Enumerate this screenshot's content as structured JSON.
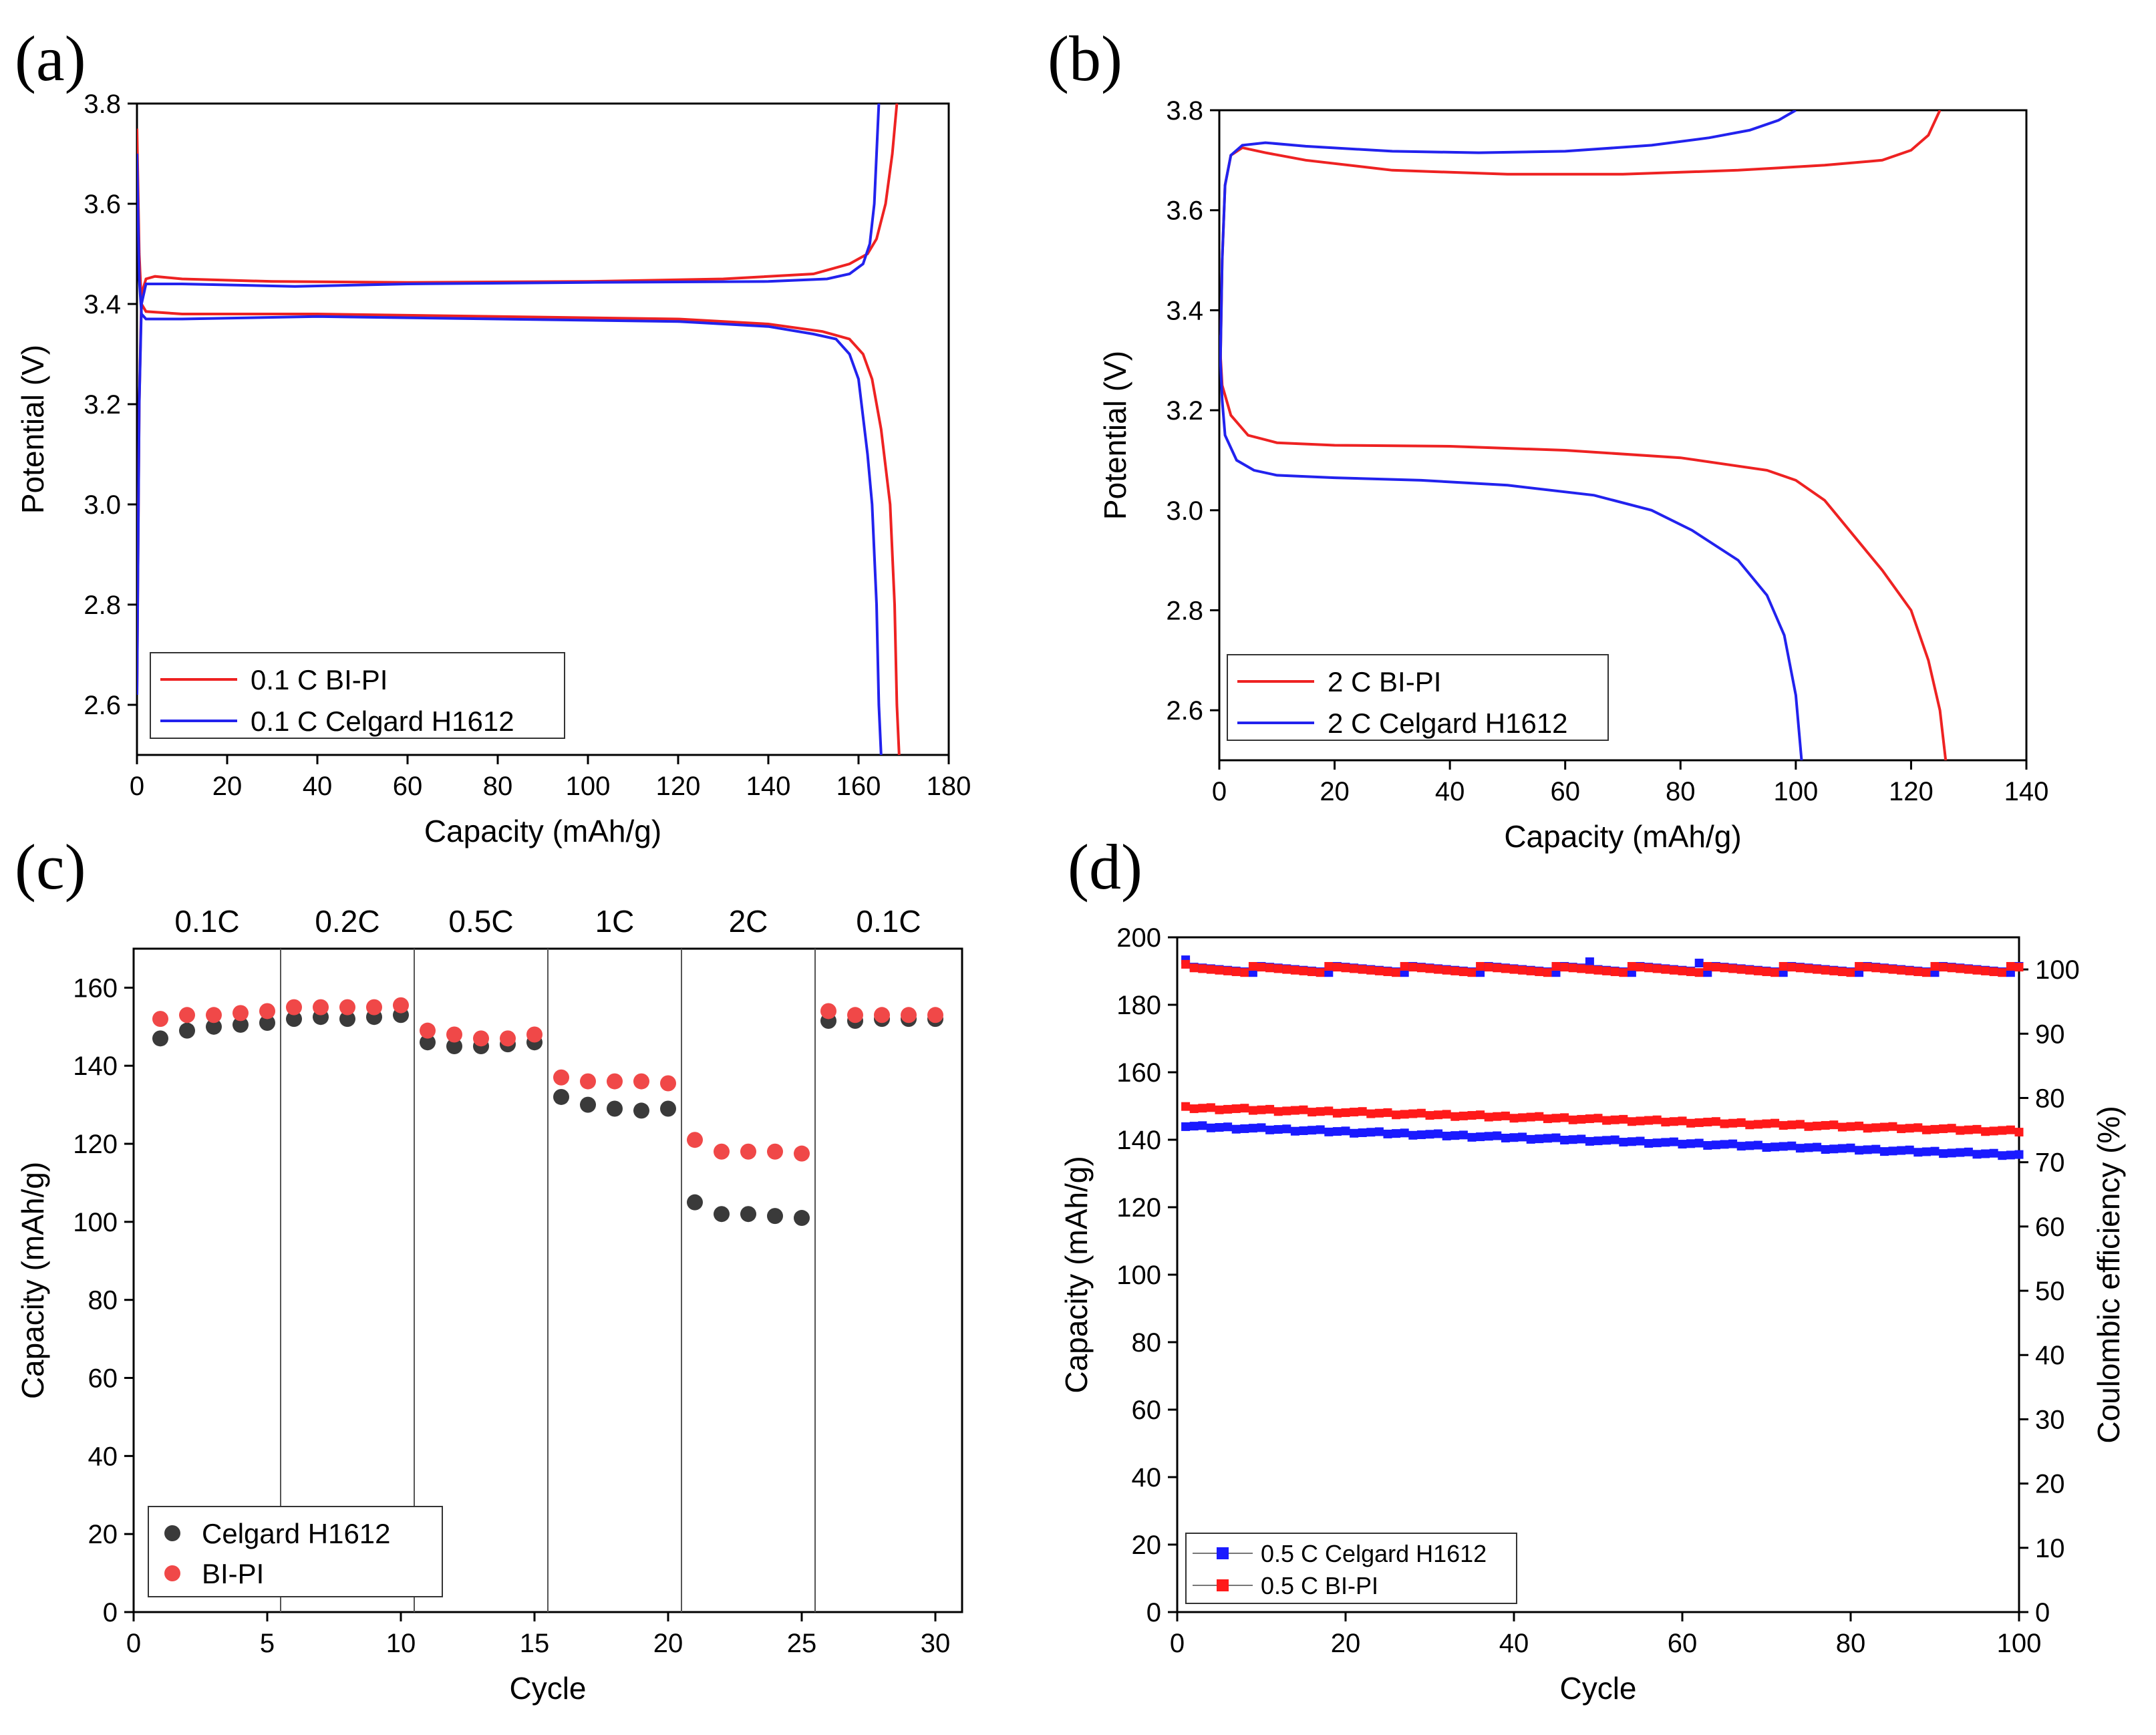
{
  "figure": {
    "colors": {
      "red": "#ee2222",
      "blue": "#2222ee",
      "grey": "#3a3a3a",
      "lightred": "#f04848",
      "sqblue": "#1a1aff",
      "sqred": "#ff1a1a"
    }
  },
  "chart_data": [
    {
      "panel": "(a)",
      "type": "line",
      "xlabel": "Capacity (mAh/g)",
      "ylabel": "Potential (V)",
      "xlim": [
        0,
        180
      ],
      "ylim": [
        2.5,
        3.8
      ],
      "xticks": [
        0,
        20,
        40,
        60,
        80,
        100,
        120,
        140,
        160,
        180
      ],
      "yticks": [
        2.6,
        2.8,
        3.0,
        3.2,
        3.4,
        3.6,
        3.8
      ],
      "legend": {
        "position": "bottom-left",
        "entries": [
          "0.1 C BI-PI",
          "0.1 C Celgard H1612"
        ]
      },
      "series": [
        {
          "name": "0.1 C BI-PI",
          "color": "#ee2222",
          "charge": [
            [
              0,
              2.62
            ],
            [
              0.5,
              3.2
            ],
            [
              1,
              3.42
            ],
            [
              2,
              3.45
            ],
            [
              4,
              3.455
            ],
            [
              10,
              3.45
            ],
            [
              30,
              3.445
            ],
            [
              60,
              3.443
            ],
            [
              100,
              3.445
            ],
            [
              130,
              3.45
            ],
            [
              150,
              3.46
            ],
            [
              158,
              3.48
            ],
            [
              162,
              3.5
            ],
            [
              164,
              3.53
            ],
            [
              166,
              3.6
            ],
            [
              167.5,
              3.7
            ],
            [
              168.5,
              3.8
            ]
          ],
          "discharge": [
            [
              0,
              3.75
            ],
            [
              0.5,
              3.5
            ],
            [
              1,
              3.4
            ],
            [
              2,
              3.385
            ],
            [
              10,
              3.38
            ],
            [
              40,
              3.38
            ],
            [
              80,
              3.375
            ],
            [
              120,
              3.37
            ],
            [
              140,
              3.36
            ],
            [
              152,
              3.345
            ],
            [
              158,
              3.33
            ],
            [
              161,
              3.3
            ],
            [
              163,
              3.25
            ],
            [
              165,
              3.15
            ],
            [
              167,
              3.0
            ],
            [
              168,
              2.8
            ],
            [
              168.5,
              2.6
            ],
            [
              169,
              2.5
            ]
          ]
        },
        {
          "name": "0.1 C Celgard H1612",
          "color": "#2222ee",
          "charge": [
            [
              0,
              2.62
            ],
            [
              0.5,
              3.2
            ],
            [
              1,
              3.4
            ],
            [
              2,
              3.44
            ],
            [
              10,
              3.44
            ],
            [
              35,
              3.435
            ],
            [
              60,
              3.44
            ],
            [
              100,
              3.443
            ],
            [
              140,
              3.445
            ],
            [
              153,
              3.45
            ],
            [
              158,
              3.46
            ],
            [
              161,
              3.48
            ],
            [
              162.5,
              3.52
            ],
            [
              163.5,
              3.6
            ],
            [
              164,
              3.7
            ],
            [
              164.5,
              3.8
            ]
          ],
          "discharge": [
            [
              0,
              3.7
            ],
            [
              0.5,
              3.45
            ],
            [
              1,
              3.38
            ],
            [
              2,
              3.37
            ],
            [
              10,
              3.37
            ],
            [
              40,
              3.375
            ],
            [
              80,
              3.37
            ],
            [
              120,
              3.365
            ],
            [
              140,
              3.355
            ],
            [
              150,
              3.34
            ],
            [
              155,
              3.33
            ],
            [
              158,
              3.3
            ],
            [
              160,
              3.25
            ],
            [
              162,
              3.1
            ],
            [
              163,
              3.0
            ],
            [
              164,
              2.8
            ],
            [
              164.5,
              2.6
            ],
            [
              165,
              2.5
            ]
          ]
        }
      ]
    },
    {
      "panel": "(b)",
      "type": "line",
      "xlabel": "Capacity (mAh/g)",
      "ylabel": "Potential (V)",
      "xlim": [
        0,
        140
      ],
      "ylim": [
        2.5,
        3.8
      ],
      "xticks": [
        0,
        20,
        40,
        60,
        80,
        100,
        120,
        140
      ],
      "yticks": [
        2.6,
        2.8,
        3.0,
        3.2,
        3.4,
        3.6,
        3.8
      ],
      "legend": {
        "position": "bottom-left",
        "entries": [
          "2 C BI-PI",
          "2 C Celgard H1612"
        ]
      },
      "series": [
        {
          "name": "2 C BI-PI",
          "color": "#ee2222",
          "charge": [
            [
              0.2,
              3.3
            ],
            [
              0.5,
              3.5
            ],
            [
              1,
              3.65
            ],
            [
              2,
              3.71
            ],
            [
              4,
              3.725
            ],
            [
              8,
              3.715
            ],
            [
              15,
              3.7
            ],
            [
              30,
              3.68
            ],
            [
              50,
              3.672
            ],
            [
              70,
              3.672
            ],
            [
              90,
              3.68
            ],
            [
              105,
              3.69
            ],
            [
              115,
              3.7
            ],
            [
              120,
              3.72
            ],
            [
              123,
              3.75
            ],
            [
              125,
              3.8
            ]
          ],
          "discharge": [
            [
              0,
              3.35
            ],
            [
              0.5,
              3.25
            ],
            [
              2,
              3.19
            ],
            [
              5,
              3.15
            ],
            [
              10,
              3.135
            ],
            [
              20,
              3.13
            ],
            [
              40,
              3.128
            ],
            [
              60,
              3.12
            ],
            [
              80,
              3.105
            ],
            [
              95,
              3.08
            ],
            [
              100,
              3.06
            ],
            [
              105,
              3.02
            ],
            [
              110,
              2.95
            ],
            [
              115,
              2.88
            ],
            [
              120,
              2.8
            ],
            [
              123,
              2.7
            ],
            [
              125,
              2.6
            ],
            [
              126,
              2.5
            ]
          ]
        },
        {
          "name": "2 C Celgard H1612",
          "color": "#2222ee",
          "charge": [
            [
              0.2,
              3.3
            ],
            [
              0.5,
              3.5
            ],
            [
              1,
              3.65
            ],
            [
              2,
              3.71
            ],
            [
              4,
              3.73
            ],
            [
              8,
              3.735
            ],
            [
              15,
              3.728
            ],
            [
              30,
              3.718
            ],
            [
              45,
              3.715
            ],
            [
              60,
              3.718
            ],
            [
              75,
              3.73
            ],
            [
              85,
              3.745
            ],
            [
              92,
              3.76
            ],
            [
              97,
              3.78
            ],
            [
              100,
              3.8
            ]
          ],
          "discharge": [
            [
              0,
              3.35
            ],
            [
              0.5,
              3.22
            ],
            [
              1,
              3.15
            ],
            [
              3,
              3.1
            ],
            [
              6,
              3.08
            ],
            [
              10,
              3.07
            ],
            [
              20,
              3.065
            ],
            [
              35,
              3.06
            ],
            [
              50,
              3.05
            ],
            [
              65,
              3.03
            ],
            [
              75,
              3.0
            ],
            [
              82,
              2.96
            ],
            [
              90,
              2.9
            ],
            [
              95,
              2.83
            ],
            [
              98,
              2.75
            ],
            [
              100,
              2.63
            ],
            [
              101,
              2.5
            ]
          ]
        }
      ]
    },
    {
      "panel": "(c)",
      "type": "scatter",
      "xlabel": "Cycle",
      "ylabel": "Capacity (mAh/g)",
      "xlim": [
        0,
        31
      ],
      "ylim": [
        0,
        170
      ],
      "xticks": [
        0,
        5,
        10,
        15,
        20,
        25,
        30
      ],
      "yticks": [
        0,
        20,
        40,
        60,
        80,
        100,
        120,
        140,
        160
      ],
      "rate_labels": [
        "0.1C",
        "0.2C",
        "0.5C",
        "1C",
        "2C",
        "0.1C"
      ],
      "dividers": [
        5.5,
        10.5,
        15.5,
        20.5,
        25.5
      ],
      "legend": {
        "position": "bottom-left",
        "entries": [
          "Celgard H1612",
          "BI-PI"
        ]
      },
      "series": [
        {
          "name": "Celgard H1612",
          "color": "#3a3a3a",
          "x": [
            1,
            2,
            3,
            4,
            5,
            6,
            7,
            8,
            9,
            10,
            11,
            12,
            13,
            14,
            15,
            16,
            17,
            18,
            19,
            20,
            21,
            22,
            23,
            24,
            25,
            26,
            27,
            28,
            29,
            30
          ],
          "values": [
            147,
            149,
            150,
            150.5,
            151,
            152,
            152.5,
            152,
            152.5,
            153,
            146,
            145,
            145,
            145.5,
            146,
            132,
            130,
            129,
            128.5,
            129,
            105,
            102,
            102,
            101.5,
            101,
            151.5,
            151.5,
            152,
            152,
            152
          ]
        },
        {
          "name": "BI-PI",
          "color": "#f04848",
          "x": [
            1,
            2,
            3,
            4,
            5,
            6,
            7,
            8,
            9,
            10,
            11,
            12,
            13,
            14,
            15,
            16,
            17,
            18,
            19,
            20,
            21,
            22,
            23,
            24,
            25,
            26,
            27,
            28,
            29,
            30
          ],
          "values": [
            152,
            153,
            153,
            153.5,
            154,
            155,
            155,
            155,
            155,
            155.5,
            149,
            148,
            147,
            147,
            148,
            137,
            136,
            136,
            136,
            135.5,
            121,
            118,
            118,
            118,
            117.5,
            154,
            153,
            153,
            153,
            153
          ]
        }
      ]
    },
    {
      "panel": "(d)",
      "type": "scatter",
      "xlabel": "Cycle",
      "ylabel": "Capacity (mAh/g)",
      "y2label": "Coulombic efficiency (%)",
      "xlim": [
        0,
        100
      ],
      "ylim": [
        0,
        200
      ],
      "y2lim": [
        0,
        105
      ],
      "xticks": [
        0,
        20,
        40,
        60,
        80,
        100
      ],
      "yticks": [
        0,
        20,
        40,
        60,
        80,
        100,
        120,
        140,
        160,
        180,
        200
      ],
      "y2ticks": [
        0,
        10,
        20,
        30,
        40,
        50,
        60,
        70,
        80,
        90,
        100
      ],
      "legend": {
        "position": "bottom-left",
        "entries": [
          "0.5 C Celgard H1612",
          "0.5 C BI-PI"
        ]
      },
      "series": [
        {
          "name": "0.5 C Celgard H1612 capacity",
          "color": "#1a1aff",
          "start": 144,
          "end": 135.5
        },
        {
          "name": "0.5 C BI-PI capacity",
          "color": "#ff1a1a",
          "start": 149.5,
          "end": 142.5
        },
        {
          "name": "0.5 C Celgard H1612 efficiency",
          "color": "#1a1aff",
          "level": 100,
          "first": 101.5
        },
        {
          "name": "0.5 C BI-PI efficiency",
          "color": "#ff1a1a",
          "level": 100,
          "first": 100.8
        }
      ]
    }
  ]
}
